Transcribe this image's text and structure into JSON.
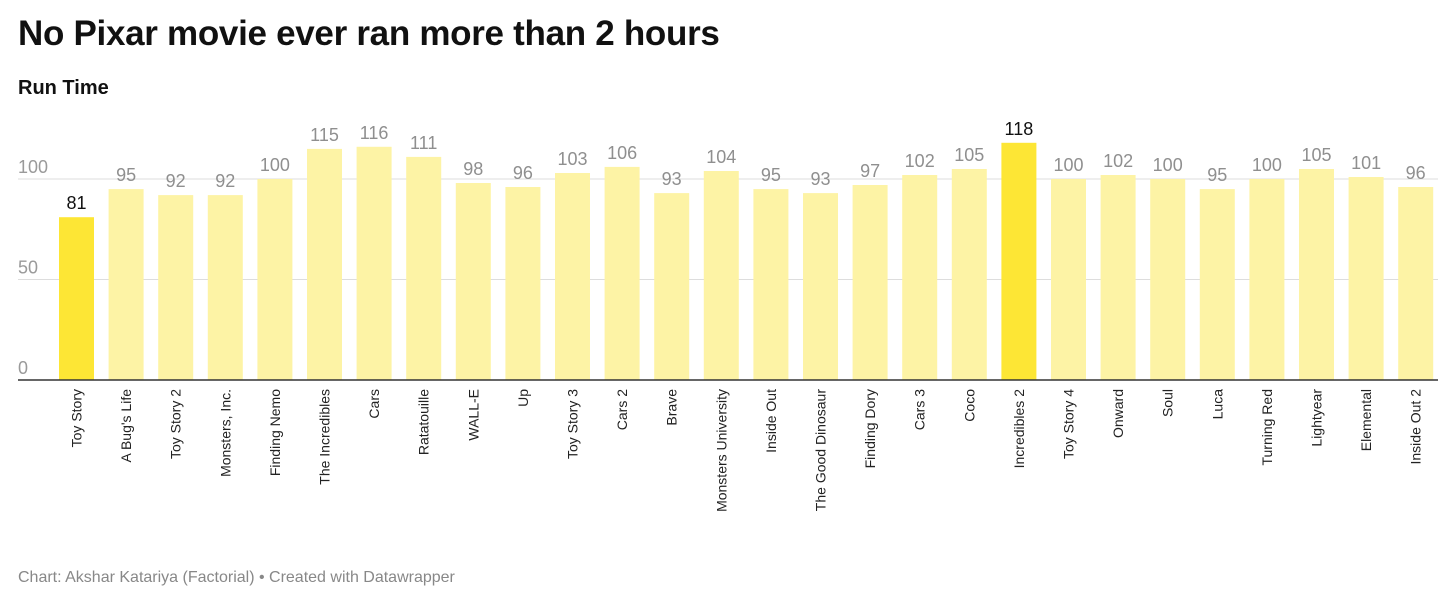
{
  "header": {
    "title": "No Pixar movie ever ran more than 2 hours",
    "subtitle": "Run Time"
  },
  "footer": {
    "credit": "Chart: Akshar Katariya (Factorial) • Created with Datawrapper"
  },
  "colors": {
    "bar": "#fdf3a5",
    "bar_highlight": "#fde635",
    "grid": "#dddddd",
    "baseline": "#333333"
  },
  "chart_data": {
    "type": "bar",
    "title": "No Pixar movie ever ran more than 2 hours",
    "ylabel": "",
    "xlabel": "",
    "ylim": [
      0,
      130
    ],
    "yticks": [
      0,
      50,
      100
    ],
    "grid": true,
    "highlighted": [
      "Toy Story",
      "Incredibles 2"
    ],
    "categories": [
      "Toy Story",
      "A Bug's Life",
      "Toy Story 2",
      "Monsters, Inc.",
      "Finding Nemo",
      "The Incredibles",
      "Cars",
      "Ratatouille",
      "WALL-E",
      "Up",
      "Toy Story 3",
      "Cars 2",
      "Brave",
      "Monsters University",
      "Inside Out",
      "The Good Dinosaur",
      "Finding Dory",
      "Cars 3",
      "Coco",
      "Incredibles 2",
      "Toy Story 4",
      "Onward",
      "Soul",
      "Luca",
      "Turning Red",
      "Lightyear",
      "Elemental",
      "Inside Out 2"
    ],
    "values": [
      81,
      95,
      92,
      92,
      100,
      115,
      116,
      111,
      98,
      96,
      103,
      106,
      93,
      104,
      95,
      93,
      97,
      102,
      105,
      118,
      100,
      102,
      100,
      95,
      100,
      105,
      101,
      96
    ]
  }
}
